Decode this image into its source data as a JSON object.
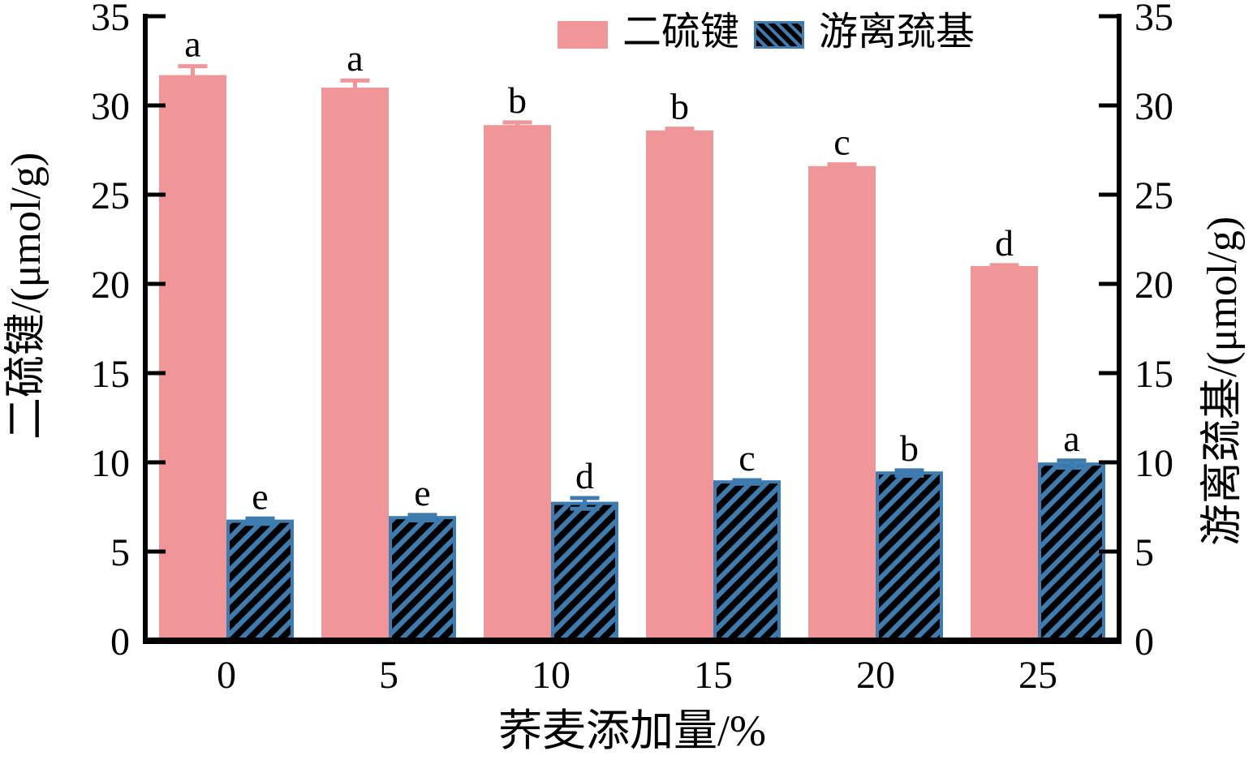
{
  "chart_data": {
    "type": "bar",
    "title": "",
    "xlabel": "荞麦添加量/%",
    "ylabel_left": "二硫键/(μmol/g)",
    "ylabel_right": "游离巯基/(μmol/g)",
    "categories": [
      "0",
      "5",
      "10",
      "15",
      "20",
      "25"
    ],
    "yticks": [
      0,
      5,
      10,
      15,
      20,
      25,
      30,
      35
    ],
    "ylim": [
      0,
      35
    ],
    "grid": false,
    "tick_direction": "in",
    "legend": {
      "position": "top-center",
      "entries": [
        "二硫键",
        "游离巯基"
      ]
    },
    "series": [
      {
        "name": "二硫键",
        "axis": "left",
        "style": "solid",
        "color": "#F09598",
        "values": [
          31.7,
          31.0,
          28.9,
          28.6,
          26.6,
          21.0
        ],
        "errors": [
          0.5,
          0.4,
          0.15,
          0.1,
          0.1,
          0.05
        ],
        "sig_letters": [
          "a",
          "a",
          "b",
          "b",
          "c",
          "d"
        ]
      },
      {
        "name": "游离巯基",
        "axis": "right",
        "style": "hatched",
        "color": "#3E7CB0",
        "hatch_color": "#000000",
        "values": [
          6.7,
          6.9,
          7.7,
          8.9,
          9.4,
          9.9
        ],
        "errors": [
          0.15,
          0.15,
          0.3,
          0.1,
          0.15,
          0.2
        ],
        "sig_letters": [
          "e",
          "e",
          "d",
          "c",
          "b",
          "a"
        ]
      }
    ],
    "colors": {
      "axis": "#000000",
      "text": "#000000",
      "background": "#ffffff"
    }
  }
}
